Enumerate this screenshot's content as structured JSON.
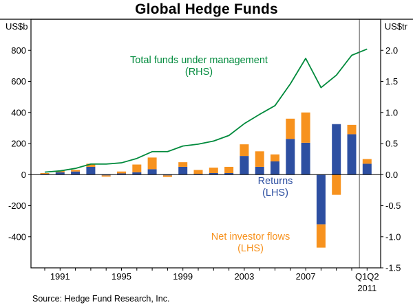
{
  "title": "Global Hedge Funds",
  "source": "Source: Hedge Fund Research, Inc.",
  "annotations": {
    "total_funds": {
      "line1": "Total funds under management",
      "line2": "(RHS)",
      "color": "#008a3c"
    },
    "returns": {
      "line1": "Returns",
      "line2": "(LHS)",
      "color": "#2d4fa1"
    },
    "net_flows": {
      "line1": "Net investor flows",
      "line2": "(LHS)",
      "color": "#f7921e"
    }
  },
  "chart_data": {
    "type": "bar",
    "subtype": "stacked-bars-with-line",
    "title": "Global Hedge Funds",
    "left_axis": {
      "unit": "US$b",
      "min": -600,
      "max": 1000,
      "ticks": [
        {
          "v": 800,
          "label": "800"
        },
        {
          "v": 600,
          "label": "600"
        },
        {
          "v": 400,
          "label": "400"
        },
        {
          "v": 200,
          "label": "200"
        },
        {
          "v": 0,
          "label": "0"
        },
        {
          "v": -200,
          "label": "-200"
        },
        {
          "v": -400,
          "label": "-400"
        }
      ]
    },
    "right_axis": {
      "unit": "US$tr",
      "min": -1.5,
      "max": 2.5,
      "ticks": [
        {
          "v": 2.0,
          "label": "2.0"
        },
        {
          "v": 1.5,
          "label": "1.5"
        },
        {
          "v": 1.0,
          "label": "1.0"
        },
        {
          "v": 0.5,
          "label": "0.5"
        },
        {
          "v": 0.0,
          "label": "0.0"
        },
        {
          "v": -0.5,
          "label": "-0.5"
        },
        {
          "v": -1.0,
          "label": "-1.0"
        },
        {
          "v": -1.5,
          "label": "-1.5"
        }
      ]
    },
    "x_ticks": [
      {
        "x": 1991,
        "label": "1991"
      },
      {
        "x": 1995,
        "label": "1995"
      },
      {
        "x": 1999,
        "label": "1999"
      },
      {
        "x": 2003,
        "label": "2003"
      },
      {
        "x": 2007,
        "label": "2007"
      },
      {
        "x": 2011,
        "label": "Q1Q2",
        "label2": "2011"
      }
    ],
    "years": [
      1990,
      1991,
      1992,
      1993,
      1994,
      1995,
      1996,
      1997,
      1998,
      1999,
      2000,
      2001,
      2002,
      2003,
      2004,
      2005,
      2006,
      2007,
      2008,
      2009,
      2010,
      2011
    ],
    "last_period_note": "Q1Q2 2011 (half year)",
    "separator_year": 2010.5,
    "series": [
      {
        "name": "Returns (LHS)",
        "type": "bar",
        "axis": "left",
        "color": "#2d4fa1",
        "values": [
          5,
          15,
          20,
          50,
          -5,
          8,
          15,
          35,
          -5,
          50,
          5,
          10,
          10,
          120,
          50,
          85,
          230,
          205,
          -320,
          325,
          260,
          70
        ]
      },
      {
        "name": "Net investor flows (LHS)",
        "type": "bar",
        "axis": "left",
        "color": "#f7921e",
        "values": [
          5,
          10,
          10,
          20,
          -8,
          12,
          50,
          75,
          -10,
          30,
          25,
          35,
          40,
          75,
          100,
          45,
          130,
          195,
          -150,
          -130,
          60,
          30
        ]
      },
      {
        "name": "Total funds under management (RHS)",
        "type": "line",
        "axis": "right",
        "color": "#008a3c",
        "values": [
          0.04,
          0.06,
          0.1,
          0.17,
          0.17,
          0.19,
          0.26,
          0.37,
          0.37,
          0.46,
          0.49,
          0.54,
          0.63,
          0.82,
          0.97,
          1.11,
          1.46,
          1.87,
          1.4,
          1.6,
          1.92,
          2.02
        ]
      }
    ],
    "legend_position": "annotations-in-plot",
    "grid": false
  }
}
